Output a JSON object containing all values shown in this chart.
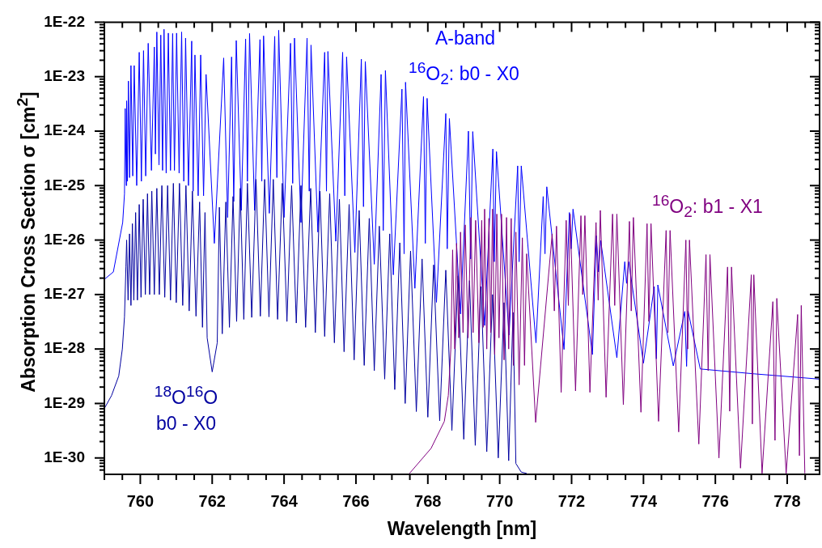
{
  "chart_data": {
    "type": "line",
    "xlabel": "Wavelength [nm]",
    "ylabel": "Absorption Cross Section σ [cm$^{2}$]",
    "log": "y",
    "grid": false,
    "annotations": [
      "A-band"
    ],
    "xlim": [
      759,
      778.9
    ],
    "ylim": [
      5e-31,
      1e-22
    ],
    "xticks": [
      {
        "value": 759,
        "label": null
      },
      {
        "value": 759.5,
        "label": null
      },
      760,
      {
        "value": 760.5,
        "label": null
      },
      {
        "value": 761,
        "label": null
      },
      {
        "value": 761.5,
        "label": null
      },
      762,
      {
        "value": 762.5,
        "label": null
      },
      {
        "value": 763,
        "label": null
      },
      {
        "value": 763.5,
        "label": null
      },
      764,
      {
        "value": 764.5,
        "label": null
      },
      {
        "value": 765,
        "label": null
      },
      {
        "value": 765.5,
        "label": null
      },
      766,
      {
        "value": 766.5,
        "label": null
      },
      {
        "value": 767,
        "label": null
      },
      {
        "value": 767.5,
        "label": null
      },
      768,
      {
        "value": 768.5,
        "label": null
      },
      {
        "value": 769,
        "label": null
      },
      {
        "value": 769.5,
        "label": null
      },
      770,
      {
        "value": 770.5,
        "label": null
      },
      {
        "value": 771,
        "label": null
      },
      {
        "value": 771.5,
        "label": null
      },
      772,
      {
        "value": 772.5,
        "label": null
      },
      {
        "value": 773,
        "label": null
      },
      {
        "value": 773.5,
        "label": null
      },
      774,
      {
        "value": 774.5,
        "label": null
      },
      {
        "value": 775,
        "label": null
      },
      {
        "value": 775.5,
        "label": null
      },
      776,
      {
        "value": 776.5,
        "label": null
      },
      {
        "value": 777,
        "label": null
      },
      {
        "value": 777.5,
        "label": null
      },
      778,
      {
        "value": 778.5,
        "label": null
      }
    ],
    "yticks": [
      {
        "value": 6e-31,
        "label": null
      },
      {
        "value": 7e-31,
        "label": null
      },
      {
        "value": 8e-31,
        "label": null
      },
      {
        "value": 9e-31,
        "label": null
      },
      {
        "value": 1e-30,
        "label": "1E-30"
      },
      {
        "value": 2e-30,
        "label": null
      },
      {
        "value": 3e-30,
        "label": null
      },
      {
        "value": 4e-30,
        "label": null
      },
      {
        "value": 5e-30,
        "label": null
      },
      {
        "value": 6e-30,
        "label": null
      },
      {
        "value": 7e-30,
        "label": null
      },
      {
        "value": 8e-30,
        "label": null
      },
      {
        "value": 9e-30,
        "label": null
      },
      {
        "value": 1e-29,
        "label": "1E-29"
      },
      {
        "value": 2e-29,
        "label": null
      },
      {
        "value": 3e-29,
        "label": null
      },
      {
        "value": 4e-29,
        "label": null
      },
      {
        "value": 5e-29,
        "label": null
      },
      {
        "value": 6e-29,
        "label": null
      },
      {
        "value": 7e-29,
        "label": null
      },
      {
        "value": 8e-29,
        "label": null
      },
      {
        "value": 9e-29,
        "label": null
      },
      {
        "value": 1e-28,
        "label": "1E-28"
      },
      {
        "value": 2e-28,
        "label": null
      },
      {
        "value": 3e-28,
        "label": null
      },
      {
        "value": 4e-28,
        "label": null
      },
      {
        "value": 5e-28,
        "label": null
      },
      {
        "value": 6e-28,
        "label": null
      },
      {
        "value": 7e-28,
        "label": null
      },
      {
        "value": 8e-28,
        "label": null
      },
      {
        "value": 9e-28,
        "label": null
      },
      {
        "value": 1e-27,
        "label": "1E-27"
      },
      {
        "value": 2e-27,
        "label": null
      },
      {
        "value": 3e-27,
        "label": null
      },
      {
        "value": 4e-27,
        "label": null
      },
      {
        "value": 5e-27,
        "label": null
      },
      {
        "value": 6e-27,
        "label": null
      },
      {
        "value": 7e-27,
        "label": null
      },
      {
        "value": 8e-27,
        "label": null
      },
      {
        "value": 9e-27,
        "label": null
      },
      {
        "value": 1e-26,
        "label": "1E-26"
      },
      {
        "value": 2e-26,
        "label": null
      },
      {
        "value": 3e-26,
        "label": null
      },
      {
        "value": 4e-26,
        "label": null
      },
      {
        "value": 5e-26,
        "label": null
      },
      {
        "value": 6e-26,
        "label": null
      },
      {
        "value": 7e-26,
        "label": null
      },
      {
        "value": 8e-26,
        "label": null
      },
      {
        "value": 9e-26,
        "label": null
      },
      {
        "value": 1e-25,
        "label": "1E-25"
      },
      {
        "value": 2e-25,
        "label": null
      },
      {
        "value": 3e-25,
        "label": null
      },
      {
        "value": 4e-25,
        "label": null
      },
      {
        "value": 5e-25,
        "label": null
      },
      {
        "value": 6e-25,
        "label": null
      },
      {
        "value": 7e-25,
        "label": null
      },
      {
        "value": 8e-25,
        "label": null
      },
      {
        "value": 9e-25,
        "label": null
      },
      {
        "value": 1e-24,
        "label": "1E-24"
      },
      {
        "value": 2e-24,
        "label": null
      },
      {
        "value": 3e-24,
        "label": null
      },
      {
        "value": 4e-24,
        "label": null
      },
      {
        "value": 5e-24,
        "label": null
      },
      {
        "value": 6e-24,
        "label": null
      },
      {
        "value": 7e-24,
        "label": null
      },
      {
        "value": 8e-24,
        "label": null
      },
      {
        "value": 9e-24,
        "label": null
      },
      {
        "value": 1e-23,
        "label": "1E-23"
      },
      {
        "value": 2e-23,
        "label": null
      },
      {
        "value": 3e-23,
        "label": null
      },
      {
        "value": 4e-23,
        "label": null
      },
      {
        "value": 5e-23,
        "label": null
      },
      {
        "value": 6e-23,
        "label": null
      },
      {
        "value": 7e-23,
        "label": null
      },
      {
        "value": 8e-23,
        "label": null
      },
      {
        "value": 9e-23,
        "label": null
      },
      {
        "value": 1e-22,
        "label": "1E-22"
      }
    ],
    "series": [
      {
        "name": "$^{16}$O$_{2}$: b0 - X0",
        "color": "#0000ff",
        "x": [
          759.0,
          759.25,
          759.51,
          759.56,
          759.58,
          759.61,
          759.62,
          759.64,
          759.67,
          759.7,
          759.74,
          759.79,
          759.83,
          759.9,
          759.97,
          760.03,
          760.09,
          760.15,
          760.22,
          760.31,
          760.39,
          760.42,
          760.46,
          760.52,
          760.57,
          760.62,
          760.66,
          760.72,
          760.78,
          760.84,
          760.9,
          760.95,
          761.01,
          761.08,
          761.15,
          761.21,
          761.26,
          761.34,
          761.43,
          761.47,
          761.52,
          761.61,
          761.68,
          761.76,
          761.83,
          762.06,
          762.32,
          762.43,
          762.54,
          762.6,
          762.67,
          762.81,
          762.93,
          762.98,
          763.04,
          763.18,
          763.33,
          763.38,
          763.43,
          763.59,
          763.74,
          763.8,
          763.85,
          764.0,
          764.18,
          764.24,
          764.29,
          764.47,
          764.64,
          764.7,
          764.75,
          764.94,
          765.13,
          765.18,
          765.22,
          765.44,
          765.63,
          765.69,
          765.74,
          765.97,
          766.15,
          766.21,
          766.26,
          766.51,
          766.7,
          766.76,
          766.82,
          767.04,
          767.28,
          767.34,
          767.38,
          767.64,
          767.88,
          767.93,
          767.98,
          768.24,
          768.5,
          768.54,
          768.6,
          768.91,
          769.13,
          769.19,
          769.25,
          769.58,
          769.81,
          769.85,
          769.91,
          770.26,
          770.5,
          770.54,
          770.6,
          771.01,
          771.21,
          771.26,
          771.31,
          771.79,
          771.94,
          771.99,
          772.04,
          772.58,
          772.69,
          772.75,
          772.81,
          773.26,
          773.48,
          773.53,
          773.59,
          774.0,
          774.3,
          774.36,
          774.4,
          774.83,
          775.15,
          775.2,
          775.24,
          775.58,
          777.08,
          778.9
        ],
        "values": [
          1.9e-27,
          2.6e-27,
          2.1e-26,
          7.1e-26,
          2.6e-24,
          1e-25,
          3.6e-24,
          1.2e-25,
          8.3e-24,
          1.4e-25,
          1.6e-23,
          1.5e-25,
          1.6e-23,
          1e-25,
          2.8e-23,
          1.2e-25,
          3e-23,
          1.5e-25,
          4.1e-23,
          1.9e-25,
          3.5e-23,
          3.8e-25,
          6.6e-23,
          2.4e-25,
          5.8e-23,
          1.9e-25,
          7.4e-23,
          1.7e-25,
          6.3e-23,
          1.9e-25,
          6.2e-23,
          1.9e-25,
          6.3e-23,
          1.7e-25,
          6.6e-23,
          1.2e-25,
          5.1e-23,
          1e-25,
          4.5e-23,
          7.9e-26,
          2.5e-23,
          6.5e-26,
          2.5e-23,
          6.5e-26,
          1.1e-23,
          8.7e-27,
          2.2e-23,
          2.6e-26,
          2.3e-23,
          5.1e-26,
          4.6e-23,
          3.5e-26,
          4.9e-23,
          1.2e-25,
          6.2e-23,
          3.5e-26,
          4.8e-23,
          1.2e-25,
          5.6e-23,
          3.1e-26,
          5.5e-23,
          1.4e-25,
          7.1e-23,
          2.6e-26,
          4.1e-23,
          1.1e-25,
          5.1e-23,
          2.1e-26,
          5.1e-23,
          7.9e-26,
          3.8e-23,
          1.4e-26,
          2.8e-23,
          7.9e-26,
          2.9e-23,
          9.5e-27,
          2.8e-23,
          6.5e-26,
          2.3e-23,
          5.9e-27,
          2.1e-23,
          4.1e-26,
          1.9e-23,
          3.6e-27,
          1.1e-23,
          1.5e-26,
          1.3e-23,
          2.3e-27,
          5.9e-24,
          5.6e-27,
          7.9e-24,
          1.3e-27,
          4.3e-24,
          8.7e-27,
          4e-24,
          7.2e-28,
          2.1e-24,
          6.9e-27,
          1.7e-24,
          4.4e-28,
          1e-24,
          4.5e-27,
          9.8e-25,
          2.7e-28,
          4.7e-25,
          4e-27,
          4.2e-25,
          1.8e-28,
          2.3e-25,
          4e-27,
          2.3e-25,
          1.3e-28,
          6.3e-26,
          5.6e-27,
          9.5e-26,
          9.8e-29,
          3.2e-26,
          6.9e-27,
          3.7e-26,
          7.9e-29,
          1.2e-26,
          2.6e-27,
          9.8e-27,
          6.9e-29,
          4e-27,
          1.6e-27,
          4e-27,
          5.5e-29,
          1.4e-27,
          6.6e-29,
          1.5e-27,
          4.9e-29,
          4.9e-28,
          4.8e-29,
          5e-28,
          4.3e-29,
          3.5e-29,
          2.8e-29
        ]
      },
      {
        "name": "$^{18}$O$^{16}$O b0 - X0",
        "color": "#0000a0",
        "x": [
          759.0,
          759.2,
          759.4,
          759.5,
          759.56,
          759.6,
          759.62,
          759.66,
          759.7,
          759.74,
          759.78,
          759.82,
          759.87,
          759.92,
          759.97,
          760.02,
          760.08,
          760.14,
          760.2,
          760.26,
          760.32,
          760.39,
          760.46,
          760.53,
          760.6,
          760.68,
          760.76,
          760.84,
          760.92,
          761.0,
          761.09,
          761.18,
          761.27,
          761.36,
          761.45,
          761.55,
          761.65,
          761.73,
          761.8,
          761.86,
          762.0,
          762.14,
          762.2,
          762.28,
          762.38,
          762.48,
          762.58,
          762.68,
          762.78,
          762.88,
          762.98,
          763.1,
          763.22,
          763.34,
          763.46,
          763.58,
          763.7,
          763.82,
          763.95,
          764.08,
          764.21,
          764.34,
          764.47,
          764.6,
          764.74,
          764.87,
          765.0,
          765.13,
          765.27,
          765.4,
          765.54,
          765.67,
          765.81,
          765.95,
          766.09,
          766.23,
          766.37,
          766.51,
          766.65,
          766.8,
          766.94,
          767.08,
          767.22,
          767.37,
          767.52,
          767.68,
          767.84,
          768.0,
          768.16,
          768.33,
          768.5,
          768.67,
          768.84,
          769.0,
          769.16,
          769.32,
          769.48,
          769.64,
          769.8,
          769.96,
          770.12,
          770.25,
          770.37,
          770.45,
          770.6,
          770.75
        ],
        "values": [
          8.1e-30,
          1.4e-29,
          3.2e-29,
          1e-28,
          3.9e-28,
          3.2e-27,
          1e-26,
          7.9e-28,
          1.3e-26,
          6.3e-28,
          2e-26,
          7.9e-28,
          3.2e-26,
          7.9e-28,
          4.5e-26,
          8.9e-28,
          5.6e-26,
          1e-27,
          7.1e-26,
          1e-27,
          7.9e-26,
          1e-27,
          8.9e-26,
          1e-27,
          1e-25,
          8.9e-28,
          1e-25,
          7.9e-28,
          1.1e-25,
          7.1e-28,
          1.1e-25,
          6.3e-28,
          1e-25,
          5e-28,
          7.9e-26,
          4e-28,
          5e-26,
          2.5e-28,
          3.2e-26,
          1.6e-28,
          3.8e-29,
          1.3e-28,
          4e-26,
          1.9e-28,
          5e-26,
          2.5e-28,
          6.3e-26,
          3.2e-28,
          8.9e-26,
          3.5e-28,
          1.1e-25,
          3.8e-28,
          1.3e-25,
          4e-28,
          1.3e-25,
          3.9e-28,
          1.3e-25,
          3.5e-28,
          1.1e-25,
          3.2e-28,
          1e-25,
          3e-28,
          1e-25,
          2.5e-28,
          8.9e-26,
          2e-28,
          7.9e-26,
          1.7e-28,
          7.1e-26,
          1.3e-28,
          5.6e-26,
          8.9e-29,
          4.5e-26,
          6.3e-29,
          3.5e-26,
          5e-29,
          2.5e-26,
          4e-29,
          1.8e-26,
          2.8e-29,
          1.3e-26,
          1.8e-29,
          8.9e-27,
          1e-29,
          6.3e-27,
          7.1e-30,
          4.5e-27,
          5.6e-30,
          3.5e-27,
          4.8e-30,
          2.8e-27,
          3.2e-30,
          2.2e-27,
          2.2e-30,
          1.8e-27,
          1.7e-30,
          1.4e-27,
          1.3e-30,
          1e-27,
          1e-30,
          7.1e-28,
          8.9e-31,
          4.7e-28,
          7.9e-31,
          5.5e-31,
          5.2e-31
        ]
      },
      {
        "name": "$^{16}$O$_{2}$: b1 - X1",
        "color": "#800080",
        "x": [
          767.49,
          768.09,
          768.46,
          768.57,
          768.64,
          768.69,
          768.75,
          768.8,
          768.86,
          768.91,
          768.98,
          769.04,
          769.12,
          769.2,
          769.26,
          769.33,
          769.42,
          769.5,
          769.54,
          769.58,
          769.64,
          769.7,
          769.75,
          769.8,
          769.86,
          769.92,
          769.98,
          770.05,
          770.12,
          770.19,
          770.25,
          770.32,
          770.38,
          770.45,
          770.54,
          770.63,
          770.69,
          770.75,
          771.0,
          771.46,
          771.52,
          771.58,
          771.71,
          771.85,
          771.91,
          771.96,
          772.11,
          772.26,
          772.31,
          772.37,
          772.51,
          772.68,
          772.74,
          772.8,
          772.96,
          773.14,
          773.2,
          773.26,
          773.44,
          773.61,
          773.66,
          773.72,
          773.93,
          774.1,
          774.15,
          774.21,
          774.42,
          774.63,
          774.68,
          774.74,
          774.98,
          775.18,
          775.23,
          775.28,
          775.54,
          775.74,
          775.8,
          775.85,
          776.1,
          776.34,
          776.4,
          776.45,
          776.7,
          777.0,
          777.03,
          777.07,
          777.3,
          777.6,
          777.66,
          777.71,
          777.97,
          778.29,
          778.34,
          778.39,
          778.49
        ],
        "values": [
          5.2e-31,
          1.5e-30,
          4.7e-30,
          1.4e-29,
          1e-28,
          6.6e-27,
          1e-28,
          8.7e-27,
          1.6e-28,
          1.4e-26,
          2e-28,
          1.9e-26,
          1.6e-28,
          2.6e-26,
          2e-28,
          2.3e-26,
          1.3e-28,
          2.3e-26,
          2.5e-28,
          3.7e-26,
          1e-28,
          2.5e-26,
          2e-28,
          3.7e-26,
          7.9e-29,
          3e-26,
          1.6e-28,
          3e-26,
          6.3e-29,
          2.6e-26,
          1e-28,
          2.5e-26,
          5e-29,
          1.4e-26,
          2.2e-29,
          1.1e-26,
          5e-29,
          5.6e-27,
          4.5e-30,
          1.3e-26,
          5e-28,
          1.8e-26,
          1.6e-29,
          2.3e-26,
          6.3e-28,
          3e-26,
          1.7e-29,
          2.8e-26,
          1e-27,
          2.8e-26,
          1.6e-29,
          2.1e-26,
          7.9e-28,
          3.5e-26,
          1.3e-29,
          3e-26,
          6.3e-28,
          3e-26,
          9.5e-30,
          2.2e-26,
          5e-28,
          2.6e-26,
          6.9e-30,
          2e-26,
          3.2e-28,
          2e-26,
          4.7e-30,
          1.5e-26,
          2e-28,
          1.5e-26,
          3e-30,
          1e-26,
          1e-28,
          1e-26,
          1.8e-30,
          5.4e-27,
          4e-29,
          5.4e-27,
          1e-30,
          3.2e-27,
          7.2e-30,
          3.2e-27,
          6.5e-31,
          2.3e-27,
          4.2e-30,
          2.3e-27,
          5.2e-31,
          7.4e-28,
          2.1e-30,
          8.5e-28,
          5.2e-31,
          4.3e-28,
          1.1e-30,
          6.3e-28,
          5.2e-31
        ]
      }
    ]
  }
}
